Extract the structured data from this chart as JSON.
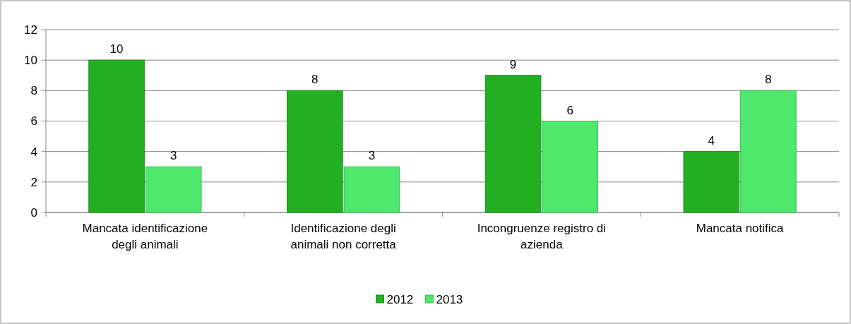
{
  "chart_data": {
    "type": "bar",
    "categories": [
      "Mancata identificazione degli animali",
      "Identificazione degli animali non corretta",
      "Incongruenze registro di azienda",
      "Mancata notifica"
    ],
    "series": [
      {
        "name": "2012",
        "color": "#22b022",
        "values": [
          10,
          8,
          9,
          4
        ]
      },
      {
        "name": "2013",
        "color": "#4ee86c",
        "values": [
          3,
          3,
          6,
          8
        ]
      }
    ],
    "ylim": [
      0,
      12
    ],
    "yticks": [
      0,
      2,
      4,
      6,
      8,
      10,
      12
    ],
    "grid": "y",
    "legend": "bottom",
    "data_labels": true
  }
}
